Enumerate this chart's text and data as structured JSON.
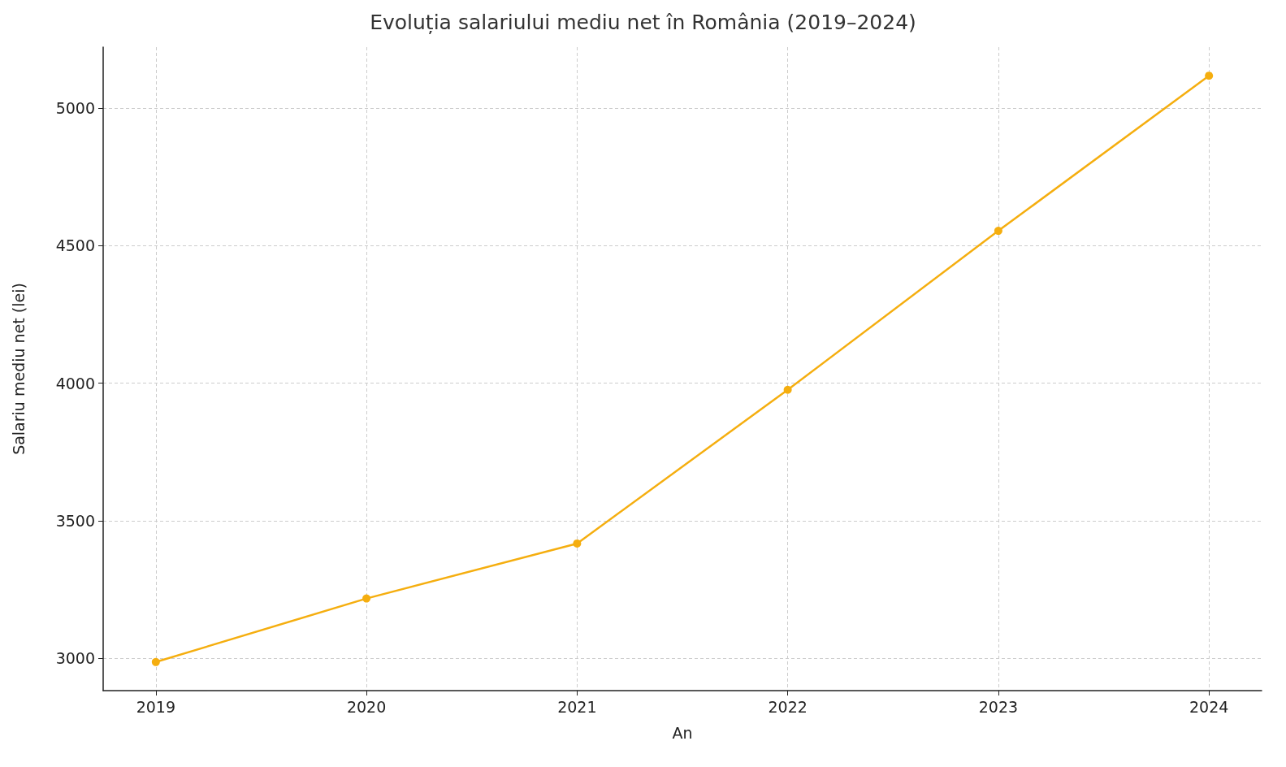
{
  "chart_data": {
    "type": "line",
    "title": "Evoluția salariului mediu net în România (2019–2024)",
    "xlabel": "An",
    "ylabel": "Salariu mediu net (lei)",
    "x": [
      2019,
      2020,
      2021,
      2022,
      2023,
      2024
    ],
    "series": [
      {
        "color": "#f5ae0f",
        "values": [
          2986,
          3217,
          3417,
          3976,
          4554,
          5118
        ]
      }
    ],
    "xlim": [
      2018.75,
      2024.25
    ],
    "xticks": [
      2019,
      2020,
      2021,
      2022,
      2023,
      2024
    ],
    "ylim": [
      2882,
      5222
    ],
    "yticks": [
      3000,
      3500,
      4000,
      4500,
      5000
    ],
    "grid": true,
    "marker": "circle",
    "line_style": "solid"
  }
}
